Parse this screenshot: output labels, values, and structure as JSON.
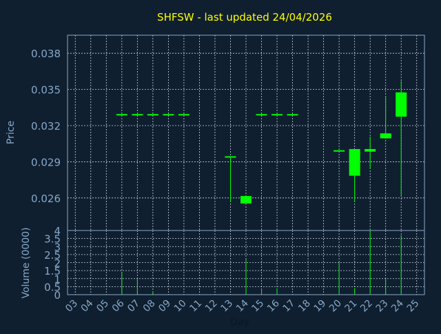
{
  "colors": {
    "background": "#0f1f30",
    "title": "#ffff00",
    "axis_text": "#87a8c8",
    "frame": "#8aa9c8",
    "grid": "#c8d8e8",
    "candle": "#00ff00"
  },
  "chart_data": [
    {
      "type": "candlestick",
      "title": "SHFSW - last updated 24/04/2026",
      "ylabel": "Price",
      "ylim": [
        0.0233,
        0.0395
      ],
      "yticks": [
        "0.038",
        "0.035",
        "0.032",
        "0.029",
        "0.026"
      ],
      "ytick_values": [
        0.038,
        0.035,
        0.032,
        0.029,
        0.026
      ],
      "grid": true,
      "candles": [
        {
          "day": 6,
          "open": 0.0329,
          "high": 0.0329,
          "low": 0.0329,
          "close": 0.0329
        },
        {
          "day": 7,
          "open": 0.0329,
          "high": 0.0329,
          "low": 0.0329,
          "close": 0.0329
        },
        {
          "day": 8,
          "open": 0.0329,
          "high": 0.0329,
          "low": 0.0329,
          "close": 0.0329
        },
        {
          "day": 9,
          "open": 0.0329,
          "high": 0.0329,
          "low": 0.0329,
          "close": 0.0329
        },
        {
          "day": 10,
          "open": 0.0329,
          "high": 0.0329,
          "low": 0.0329,
          "close": 0.0329
        },
        {
          "day": 13,
          "open": 0.0294,
          "high": 0.0294,
          "low": 0.0257,
          "close": 0.0294
        },
        {
          "day": 14,
          "open": 0.0261,
          "high": 0.0261,
          "low": 0.0256,
          "close": 0.0256
        },
        {
          "day": 15,
          "open": 0.0329,
          "high": 0.0329,
          "low": 0.0329,
          "close": 0.0329
        },
        {
          "day": 16,
          "open": 0.0329,
          "high": 0.0329,
          "low": 0.0329,
          "close": 0.0329
        },
        {
          "day": 17,
          "open": 0.0329,
          "high": 0.0329,
          "low": 0.0329,
          "close": 0.0329
        },
        {
          "day": 20,
          "open": 0.0299,
          "high": 0.0299,
          "low": 0.0299,
          "close": 0.0299
        },
        {
          "day": 21,
          "open": 0.03,
          "high": 0.03,
          "low": 0.0257,
          "close": 0.0279
        },
        {
          "day": 22,
          "open": 0.0299,
          "high": 0.0311,
          "low": 0.0284,
          "close": 0.03
        },
        {
          "day": 23,
          "open": 0.031,
          "high": 0.0344,
          "low": 0.031,
          "close": 0.0313
        },
        {
          "day": 24,
          "open": 0.0328,
          "high": 0.0357,
          "low": 0.0262,
          "close": 0.0347
        }
      ]
    },
    {
      "type": "bar",
      "ylabel": "Volume (0000)",
      "xlabel": "Day",
      "ylim": [
        0,
        4
      ],
      "yticks": [
        "4",
        "3.5",
        "3",
        "2.5",
        "2",
        "1.5",
        "1",
        "0.5",
        "0"
      ],
      "ytick_values": [
        4,
        3.5,
        3,
        2.5,
        2,
        1.5,
        1,
        0.5,
        0
      ],
      "categories": [
        "03",
        "04",
        "05",
        "06",
        "07",
        "08",
        "09",
        "10",
        "11",
        "12",
        "13",
        "14",
        "15",
        "16",
        "17",
        "18",
        "19",
        "20",
        "21",
        "22",
        "23",
        "24",
        "25"
      ],
      "x": [
        3,
        4,
        5,
        6,
        7,
        8,
        9,
        10,
        11,
        12,
        13,
        14,
        15,
        16,
        17,
        18,
        19,
        20,
        21,
        22,
        23,
        24,
        25
      ],
      "grid": true,
      "bars": [
        {
          "day": 6,
          "value": 1.4
        },
        {
          "day": 7,
          "value": 1.0
        },
        {
          "day": 8,
          "value": 0.2
        },
        {
          "day": 14,
          "value": 2.2
        },
        {
          "day": 15,
          "value": 0.4
        },
        {
          "day": 16,
          "value": 0.4
        },
        {
          "day": 20,
          "value": 2.0
        },
        {
          "day": 21,
          "value": 0.4
        },
        {
          "day": 22,
          "value": 4.0
        },
        {
          "day": 23,
          "value": 1.0
        },
        {
          "day": 24,
          "value": 3.7
        }
      ]
    }
  ]
}
